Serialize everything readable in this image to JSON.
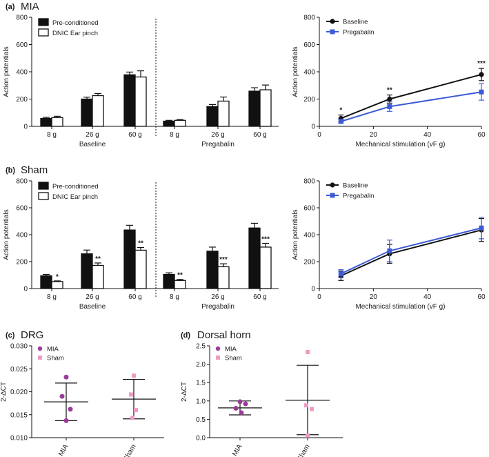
{
  "colors": {
    "black": "#111111",
    "blue": "#3d5bd6",
    "purple": "#9b3b9c",
    "pink": "#ee9bc3"
  },
  "chart_data": [
    {
      "type": "bar",
      "panel": "(a)",
      "title": "MIA",
      "ylabel": "Action potentials",
      "ylim": [
        0,
        800
      ],
      "yticks": [
        "0",
        "200",
        "400",
        "600",
        "800"
      ],
      "groups": [
        "Baseline",
        "Pregabalin"
      ],
      "categories": [
        "8 g",
        "26 g",
        "60 g",
        "8 g",
        "26 g",
        "60 g"
      ],
      "series": [
        {
          "name": "Pre-conditioned",
          "values": [
            58,
            200,
            378,
            38,
            145,
            258
          ],
          "errors": [
            8,
            14,
            20,
            6,
            15,
            25
          ]
        },
        {
          "name": "DNIC Ear pinch",
          "values": [
            64,
            225,
            362,
            44,
            185,
            268
          ],
          "errors": [
            10,
            16,
            45,
            6,
            30,
            35
          ]
        }
      ],
      "annotations": []
    },
    {
      "type": "line",
      "panel": "(a)",
      "xlabel": "Mechanical stimulation (vF g)",
      "ylabel": "Action potentials",
      "xlim": [
        0,
        60
      ],
      "ylim": [
        0,
        800
      ],
      "xticks": [
        "0",
        "20",
        "40",
        "60"
      ],
      "yticks": [
        "0",
        "200",
        "400",
        "600",
        "800"
      ],
      "x": [
        8,
        26,
        60
      ],
      "series": [
        {
          "name": "Baseline",
          "values": [
            58,
            200,
            380
          ],
          "errors": [
            25,
            30,
            45
          ],
          "color": "#111111"
        },
        {
          "name": "Pregabalin",
          "values": [
            36,
            145,
            252
          ],
          "errors": [
            15,
            35,
            60
          ],
          "color": "#3d5bd6"
        }
      ],
      "stars": [
        "*",
        "**",
        "***"
      ]
    },
    {
      "type": "bar",
      "panel": "(b)",
      "title": "Sham",
      "ylabel": "Action potentials",
      "ylim": [
        0,
        800
      ],
      "yticks": [
        "0",
        "200",
        "400",
        "600",
        "800"
      ],
      "groups": [
        "Baseline",
        "Pregabalin"
      ],
      "categories": [
        "8 g",
        "26 g",
        "60 g",
        "8 g",
        "26 g",
        "60 g"
      ],
      "series": [
        {
          "name": "Pre-conditioned",
          "values": [
            95,
            258,
            435,
            105,
            278,
            450
          ],
          "errors": [
            10,
            28,
            35,
            12,
            30,
            35
          ]
        },
        {
          "name": "DNIC Ear pinch",
          "values": [
            52,
            172,
            285,
            60,
            162,
            308
          ],
          "errors": [
            5,
            18,
            20,
            8,
            22,
            28
          ]
        }
      ],
      "annotations": [
        "*",
        "**",
        "**",
        "**",
        "***",
        "***"
      ]
    },
    {
      "type": "line",
      "panel": "(b)",
      "xlabel": "Mechanical stimulation (vF g)",
      "ylabel": "Action potentials",
      "xlim": [
        0,
        60
      ],
      "ylim": [
        0,
        800
      ],
      "xticks": [
        "0",
        "20",
        "40",
        "60"
      ],
      "yticks": [
        "0",
        "200",
        "400",
        "600",
        "800"
      ],
      "x": [
        8,
        26,
        60
      ],
      "series": [
        {
          "name": "Baseline",
          "values": [
            95,
            258,
            435
          ],
          "errors": [
            35,
            70,
            85
          ],
          "color": "#111111"
        },
        {
          "name": "Pregabalin",
          "values": [
            110,
            280,
            450
          ],
          "errors": [
            30,
            80,
            80
          ],
          "color": "#3d5bd6"
        }
      ],
      "stars": []
    },
    {
      "type": "scatter",
      "panel": "(c)",
      "title": "DRG",
      "ylabel": "2-ΔCT",
      "ylim": [
        0.01,
        0.03
      ],
      "yticks": [
        "0.010",
        "0.015",
        "0.020",
        "0.025",
        "0.030"
      ],
      "categories": [
        "MIA",
        "Sham"
      ],
      "series": [
        {
          "name": "MIA",
          "points": [
            0.0232,
            0.019,
            0.0162,
            0.0137
          ],
          "mean": 0.0178,
          "sd_low": 0.0137,
          "sd_high": 0.0219,
          "color": "#9b3b9c"
        },
        {
          "name": "Sham",
          "points": [
            0.0235,
            0.0194,
            0.016,
            0.0143
          ],
          "mean": 0.0184,
          "sd_low": 0.0141,
          "sd_high": 0.0227,
          "color": "#ee9bc3"
        }
      ]
    },
    {
      "type": "scatter",
      "panel": "(d)",
      "title": "Dorsal horn",
      "ylabel": "2-ΔCT",
      "ylim": [
        0,
        2.5
      ],
      "yticks": [
        "0.0",
        "0.5",
        "1.0",
        "1.5",
        "2.0",
        "2.5"
      ],
      "categories": [
        "MIA",
        "Sham"
      ],
      "series": [
        {
          "name": "MIA",
          "points": [
            0.98,
            0.92,
            0.8,
            0.68
          ],
          "mean": 0.81,
          "sd_low": 0.62,
          "sd_high": 1.0,
          "color": "#9b3b9c"
        },
        {
          "name": "Sham",
          "points": [
            2.33,
            0.88,
            0.78,
            0.06
          ],
          "mean": 1.02,
          "sd_low": 0.08,
          "sd_high": 1.97,
          "color": "#ee9bc3"
        }
      ]
    }
  ]
}
